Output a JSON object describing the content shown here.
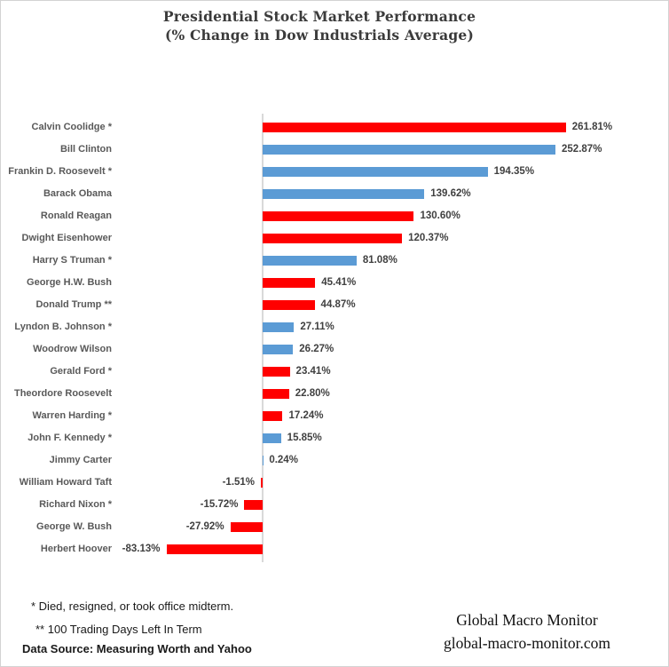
{
  "title": {
    "line1": "Presidential Stock Market Performance",
    "line2": "(% Change in Dow Industrials Average)"
  },
  "chart_data": {
    "type": "bar",
    "orientation": "horizontal",
    "title": "Presidential Stock Market Performance (% Change in Dow Industrials Average)",
    "xlabel": "",
    "ylabel": "",
    "xlim": [
      -100,
      350
    ],
    "grid": false,
    "legend": "none",
    "axis_color": "#d9d9d9",
    "categories": [
      "Calvin Coolidge *",
      "Bill Clinton",
      "Frankin D. Roosevelt *",
      "Barack Obama",
      "Ronald Reagan",
      "Dwight Eisenhower",
      "Harry S Truman *",
      "George H.W. Bush",
      "Donald Trump **",
      "Lyndon B. Johnson *",
      "Woodrow Wilson",
      "Gerald Ford *",
      "Theordore Roosevelt",
      "Warren Harding *",
      "John F. Kennedy *",
      "Jimmy Carter",
      "William Howard Taft",
      "Richard Nixon *",
      "George W. Bush",
      "Herbert Hoover"
    ],
    "values": [
      261.81,
      252.87,
      194.35,
      139.62,
      130.6,
      120.37,
      81.08,
      45.41,
      44.87,
      27.11,
      26.27,
      23.41,
      22.8,
      17.24,
      15.85,
      0.24,
      -1.51,
      -15.72,
      -27.92,
      -83.13
    ],
    "value_labels": [
      "261.81%",
      "252.87%",
      "194.35%",
      "139.62%",
      "130.60%",
      "120.37%",
      "81.08%",
      "45.41%",
      "44.87%",
      "27.11%",
      "26.27%",
      "23.41%",
      "22.80%",
      "17.24%",
      "15.85%",
      "0.24%",
      "-1.51%",
      "-15.72%",
      "-27.92%",
      "-83.13%"
    ],
    "bar_colors": [
      "#ff0000",
      "#5b9bd5",
      "#5b9bd5",
      "#5b9bd5",
      "#ff0000",
      "#ff0000",
      "#5b9bd5",
      "#ff0000",
      "#ff0000",
      "#5b9bd5",
      "#5b9bd5",
      "#ff0000",
      "#ff0000",
      "#ff0000",
      "#5b9bd5",
      "#5b9bd5",
      "#ff0000",
      "#ff0000",
      "#ff0000",
      "#ff0000"
    ],
    "colors": {
      "red_bar": "#ff0000",
      "blue_bar": "#5b9bd5"
    }
  },
  "footnotes": {
    "note1": "* Died, resigned, or took office midterm.",
    "note2": "** 100 Trading Days Left In Term",
    "source": "Data Source:  Measuring Worth and Yahoo"
  },
  "branding": {
    "name": "Global Macro Monitor",
    "site": "global-macro-monitor.com"
  }
}
